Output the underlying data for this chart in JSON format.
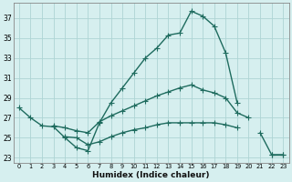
{
  "xlabel": "Humidex (Indice chaleur)",
  "bg_color": "#d6efef",
  "grid_color": "#aed4d4",
  "line_color": "#1e6b5e",
  "xlim": [
    -0.5,
    23.5
  ],
  "ylim": [
    22.5,
    38.5
  ],
  "xticks": [
    0,
    1,
    2,
    3,
    4,
    5,
    6,
    7,
    8,
    9,
    10,
    11,
    12,
    13,
    14,
    15,
    16,
    17,
    18,
    19,
    20,
    21,
    22,
    23
  ],
  "yticks": [
    23,
    25,
    27,
    29,
    31,
    33,
    35,
    37
  ],
  "line1_y": [
    28,
    27,
    26.2,
    26.1,
    25,
    24,
    23.7,
    26.5,
    28.5,
    30,
    31.5,
    33,
    34.0,
    35.3,
    35.5,
    37.7,
    37.2,
    36.2,
    33.5,
    28.5,
    null,
    null,
    null,
    null
  ],
  "line2_y": [
    null,
    null,
    null,
    26.2,
    26.0,
    25.7,
    25.5,
    26.6,
    27.2,
    27.7,
    28.2,
    28.7,
    29.2,
    29.6,
    30.0,
    30.3,
    29.8,
    29.5,
    29.0,
    27.5,
    27.0,
    null,
    null,
    null
  ],
  "line3_y": [
    null,
    null,
    null,
    null,
    25.1,
    25.0,
    24.3,
    24.6,
    25.1,
    25.5,
    25.8,
    26.0,
    26.3,
    26.5,
    26.5,
    26.5,
    26.5,
    26.5,
    26.3,
    26.0,
    null,
    null,
    23.3,
    23.3
  ],
  "line4_y": [
    null,
    null,
    null,
    null,
    null,
    null,
    null,
    null,
    null,
    null,
    null,
    null,
    null,
    null,
    null,
    null,
    null,
    null,
    null,
    null,
    null,
    25.5,
    23.3,
    23.3
  ],
  "markersize": 2.5,
  "linewidth": 1.0
}
